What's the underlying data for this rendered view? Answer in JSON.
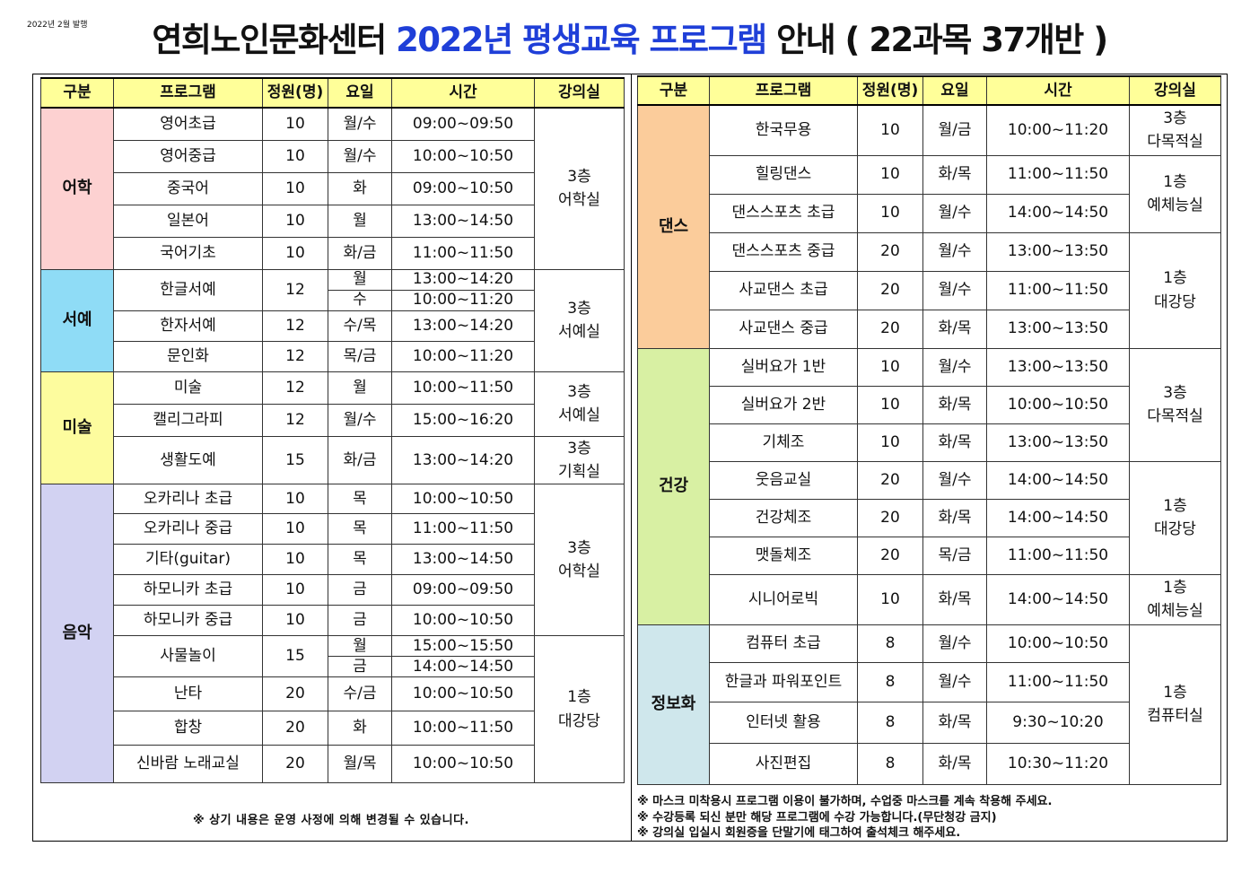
{
  "published": "2022년 2월 발행",
  "title": {
    "part1": "연희노인문화센터",
    "part2": "2022년 평생교육 프로그램",
    "part3": "안내 ( 22과목 37개반 )"
  },
  "colors": {
    "header_bg": "#ffff99",
    "language": "#fdd1d1",
    "calligraphy": "#8fdcf6",
    "art": "#fdfc9e",
    "music": "#d2d2f2",
    "dance": "#fbcc9b",
    "health": "#d8f0a3",
    "info": "#cfe7ec",
    "title_accent": "#1f3fd8"
  },
  "headers": [
    "구분",
    "프로그램",
    "정원(명)",
    "요일",
    "시간",
    "강의실"
  ],
  "left": {
    "categories": [
      "어학",
      "서예",
      "미술",
      "음악"
    ],
    "rows": [
      {
        "p": "영어초급",
        "c": "10",
        "d": "월/수",
        "t": "09:00~09:50"
      },
      {
        "p": "영어중급",
        "c": "10",
        "d": "월/수",
        "t": "10:00~10:50"
      },
      {
        "p": "중국어",
        "c": "10",
        "d": "화",
        "t": "09:00~10:50"
      },
      {
        "p": "일본어",
        "c": "10",
        "d": "월",
        "t": "13:00~14:50"
      },
      {
        "p": "국어기초",
        "c": "10",
        "d": "화/금",
        "t": "11:00~11:50"
      },
      {
        "p": "한글서예",
        "c": "12",
        "d": "월",
        "t": "13:00~14:20",
        "d2": "수",
        "t2": "10:00~11:20"
      },
      {
        "p": "한자서예",
        "c": "12",
        "d": "수/목",
        "t": "13:00~14:20"
      },
      {
        "p": "문인화",
        "c": "12",
        "d": "목/금",
        "t": "10:00~11:20"
      },
      {
        "p": "미술",
        "c": "12",
        "d": "월",
        "t": "10:00~11:50"
      },
      {
        "p": "캘리그라피",
        "c": "12",
        "d": "월/수",
        "t": "15:00~16:20"
      },
      {
        "p": "생활도예",
        "c": "15",
        "d": "화/금",
        "t": "13:00~14:20"
      },
      {
        "p": "오카리나 초급",
        "c": "10",
        "d": "목",
        "t": "10:00~10:50"
      },
      {
        "p": "오카리나 중급",
        "c": "10",
        "d": "목",
        "t": "11:00~11:50"
      },
      {
        "p": "기타(guitar)",
        "c": "10",
        "d": "목",
        "t": "13:00~14:50"
      },
      {
        "p": "하모니카 초급",
        "c": "10",
        "d": "금",
        "t": "09:00~09:50"
      },
      {
        "p": "하모니카 중급",
        "c": "10",
        "d": "금",
        "t": "10:00~10:50"
      },
      {
        "p": "사물놀이",
        "c": "15",
        "d": "월",
        "t": "15:00~15:50",
        "d2": "금",
        "t2": "14:00~14:50"
      },
      {
        "p": "난타",
        "c": "20",
        "d": "수/금",
        "t": "10:00~10:50"
      },
      {
        "p": "합창",
        "c": "20",
        "d": "화",
        "t": "10:00~11:50"
      },
      {
        "p": "신바람 노래교실",
        "c": "20",
        "d": "월/목",
        "t": "10:00~10:50"
      }
    ],
    "rooms": [
      "3층\n어학실",
      "3층\n서예실",
      "3층\n서예실",
      "3층\n기획실",
      "3층\n어학실",
      "1층\n대강당"
    ]
  },
  "right": {
    "categories": [
      "댄스",
      "건강",
      "정보화"
    ],
    "rows": [
      {
        "p": "한국무용",
        "c": "10",
        "d": "월/금",
        "t": "10:00~11:20"
      },
      {
        "p": "힐링댄스",
        "c": "10",
        "d": "화/목",
        "t": "11:00~11:50"
      },
      {
        "p": "댄스스포츠 초급",
        "c": "10",
        "d": "월/수",
        "t": "14:00~14:50"
      },
      {
        "p": "댄스스포츠 중급",
        "c": "20",
        "d": "월/수",
        "t": "13:00~13:50"
      },
      {
        "p": "사교댄스 초급",
        "c": "20",
        "d": "월/수",
        "t": "11:00~11:50"
      },
      {
        "p": "사교댄스 중급",
        "c": "20",
        "d": "화/목",
        "t": "13:00~13:50"
      },
      {
        "p": "실버요가 1반",
        "c": "10",
        "d": "월/수",
        "t": "13:00~13:50"
      },
      {
        "p": "실버요가 2반",
        "c": "10",
        "d": "화/목",
        "t": "10:00~10:50"
      },
      {
        "p": "기체조",
        "c": "10",
        "d": "화/목",
        "t": "13:00~13:50"
      },
      {
        "p": "웃음교실",
        "c": "20",
        "d": "월/수",
        "t": "14:00~14:50"
      },
      {
        "p": "건강체조",
        "c": "20",
        "d": "화/목",
        "t": "14:00~14:50"
      },
      {
        "p": "맷돌체조",
        "c": "20",
        "d": "목/금",
        "t": "11:00~11:50"
      },
      {
        "p": "시니어로빅",
        "c": "10",
        "d": "화/목",
        "t": "14:00~14:50"
      },
      {
        "p": "컴퓨터 초급",
        "c": "8",
        "d": "월/수",
        "t": "10:00~10:50"
      },
      {
        "p": "한글과 파워포인트",
        "c": "8",
        "d": "월/수",
        "t": "11:00~11:50"
      },
      {
        "p": "인터넷 활용",
        "c": "8",
        "d": "화/목",
        "t": "9:30~10:20"
      },
      {
        "p": "사진편집",
        "c": "8",
        "d": "화/목",
        "t": "10:30~11:20"
      }
    ],
    "rooms": [
      "3층\n다목적실",
      "1층\n예체능실",
      "1층\n대강당",
      "3층\n다목적실",
      "1층\n대강당",
      "1층\n예체능실",
      "1층\n컴퓨터실"
    ]
  },
  "note_left": "※ 상기 내용은 운영 사정에 의해 변경될 수 있습니다.",
  "notes_right": [
    "※ 마스크 미착용시 프로그램 이용이 불가하며, 수업중 마스크를 계속 착용해 주세요.",
    "※ 수강등록 되신 분만 해당 프로그램에 수강 가능합니다.(무단청강 금지)",
    "※ 강의실 입실시 회원증을 단말기에 태그하여 출석체크 해주세요."
  ]
}
